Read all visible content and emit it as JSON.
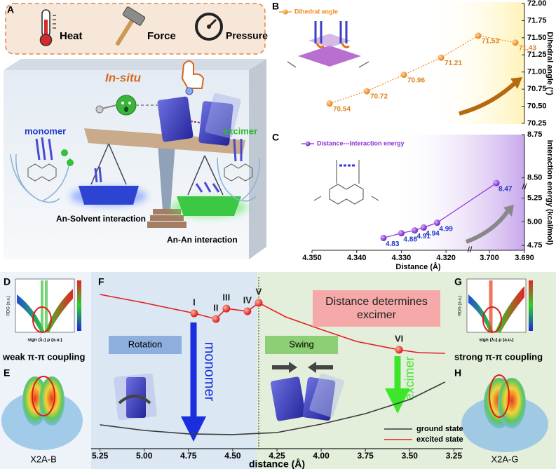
{
  "panel_labels": {
    "a": "A",
    "b": "B",
    "c": "C",
    "d": "D",
    "e": "E",
    "f": "F",
    "g": "G",
    "h": "H"
  },
  "panel_a": {
    "stimuli": [
      "Heat",
      "Force",
      "Pressure"
    ],
    "in_situ": "In-situ",
    "monomer": "monomer",
    "excimer": "excimer",
    "solvent_interaction": "An-Solvent interaction",
    "an_interaction": "An-An interaction"
  },
  "panel_d": {
    "ylabel": "RDG (a.u.)",
    "xlabel": "sign (λ₂) ρ (a.u.)",
    "caption": "weak π-π coupling"
  },
  "panel_e": {
    "caption": "X2A-B"
  },
  "panel_g": {
    "ylabel": "RDG (a.u.)",
    "xlabel": "sign (λ₂) ρ (a.u.)",
    "caption": "strong π-π coupling"
  },
  "panel_h": {
    "caption": "X2A-G"
  },
  "panel_f": {
    "rotation": "Rotation",
    "swing": "Swing",
    "headline": "Distance determines excimer",
    "monomer": "monomer",
    "excimer": "excimer"
  },
  "chart_data": [
    {
      "type": "line",
      "ylabel": "Dihedral angle (°)",
      "categories": [
        null,
        null,
        null,
        null,
        null,
        null
      ],
      "series": [
        {
          "name": "Dihedral angle",
          "color": "#f08a1c",
          "values": [
            70.54,
            70.72,
            70.96,
            71.21,
            71.53,
            71.43
          ]
        }
      ],
      "ylim": [
        70.25,
        72.0
      ],
      "yticks": [
        70.25,
        {
          "value": 70.5,
          "label": "70.50"
        },
        70.75,
        {
          "value": 71,
          "label": "71.00"
        },
        71.25,
        {
          "value": 71.5,
          "label": "71.50"
        },
        71.75,
        {
          "value": 72,
          "label": "72.00"
        }
      ]
    },
    {
      "type": "line",
      "xlabel": "Distance (Å)",
      "ylabel": "Interaction energy (kcal/mol)",
      "x": [
        4.334,
        4.33,
        4.327,
        4.325,
        4.322,
        3.698
      ],
      "series": [
        {
          "name": "Distance---Interaction energy",
          "color": "#8b2fd6",
          "values": [
            4.83,
            4.88,
            4.91,
            4.94,
            4.99,
            8.47
          ]
        }
      ],
      "xlim_segments": [
        [
          4.35,
          4.315
        ],
        [
          3.705,
          3.69
        ]
      ],
      "ylim_segments": [
        [
          4.7,
          5.35
        ],
        [
          8.45,
          8.75
        ]
      ],
      "xticks": [
        {
          "value": 4.35,
          "label": "4.350"
        },
        {
          "value": 4.34,
          "label": "4.340"
        },
        {
          "value": 4.33,
          "label": "4.330"
        },
        {
          "value": 4.32,
          "label": "4.320"
        },
        {
          "value": 3.7,
          "label": "3.700"
        },
        {
          "value": 3.69,
          "label": "3.690"
        }
      ],
      "yticks": [
        4.75,
        {
          "value": 5,
          "label": "5.00"
        },
        5.25,
        {
          "value": 8.5,
          "label": "8.50"
        },
        8.75
      ]
    },
    {
      "type": "line",
      "xlabel": "distance (Å)",
      "series": [
        {
          "name": "ground state",
          "color": "#3a3a3a",
          "x": [
            5.25,
            5.0,
            4.75,
            4.5,
            4.25,
            4.0,
            3.75,
            3.5,
            3.3
          ],
          "values": [
            0.139,
            0.106,
            0.086,
            0.082,
            0.094,
            0.143,
            0.204,
            0.286,
            0.388
          ]
        },
        {
          "name": "excited state",
          "color": "#e41f1f",
          "x": [
            5.25,
            5.0,
            4.718,
            4.595,
            4.536,
            4.417,
            4.353,
            4.2,
            4.0,
            3.8,
            3.56,
            3.45,
            3.3
          ],
          "values": [
            0.898,
            0.849,
            0.788,
            0.755,
            0.816,
            0.8,
            0.849,
            0.767,
            0.694,
            0.624,
            0.576,
            0.559,
            0.555
          ]
        }
      ],
      "markers": [
        {
          "label": "I",
          "x": 4.718,
          "y": 0.788
        },
        {
          "label": "II",
          "x": 4.595,
          "y": 0.755
        },
        {
          "label": "III",
          "x": 4.536,
          "y": 0.816
        },
        {
          "label": "IV",
          "x": 4.417,
          "y": 0.8
        },
        {
          "label": "V",
          "x": 4.353,
          "y": 0.849
        },
        {
          "label": "VI",
          "x": 3.56,
          "y": 0.576
        }
      ],
      "xlim": [
        5.3,
        3.2
      ],
      "ylim": [
        0,
        1
      ],
      "xticks": [
        5.25,
        {
          "value": 5,
          "label": "5.00"
        },
        4.75,
        {
          "value": 4.5,
          "label": "4.50"
        },
        4.25,
        {
          "value": 4,
          "label": "4.00"
        },
        3.75,
        {
          "value": 3.5,
          "label": "3.50"
        },
        3.25
      ]
    }
  ]
}
